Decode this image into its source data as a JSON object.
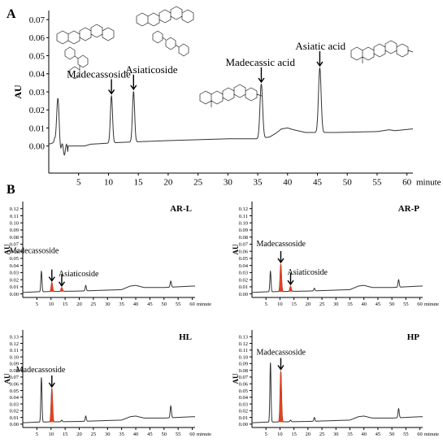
{
  "panel_labels": {
    "a": "A",
    "b": "B"
  },
  "arrow_glyph": "↓",
  "chart_data": [
    {
      "id": "A",
      "type": "line",
      "ylabel": "AU",
      "xlabel": "minute",
      "xlim": [
        0,
        61
      ],
      "ylim": [
        -0.015,
        0.075
      ],
      "xticks": [
        5,
        10,
        15,
        20,
        25,
        30,
        35,
        40,
        45,
        50,
        55,
        60
      ],
      "yticks": [
        0.0,
        0.01,
        0.02,
        0.03,
        0.04,
        0.05,
        0.06,
        0.07
      ],
      "ytick_labels": [
        "0.00",
        "0.01",
        "0.02",
        "0.03",
        "0.04",
        "0.05",
        "0.06",
        "0.07"
      ],
      "baseline": [
        [
          0,
          0.001
        ],
        [
          1,
          0.002
        ],
        [
          2,
          0.0
        ],
        [
          3,
          0.0
        ],
        [
          6,
          0.0
        ],
        [
          7,
          0.001
        ],
        [
          12,
          0.002
        ],
        [
          20,
          0.003
        ],
        [
          30,
          0.004
        ],
        [
          35,
          0.004
        ],
        [
          37,
          0.005
        ],
        [
          38,
          0.007
        ],
        [
          39,
          0.0095
        ],
        [
          40,
          0.01
        ],
        [
          41,
          0.009
        ],
        [
          43,
          0.0075
        ],
        [
          48,
          0.0075
        ],
        [
          55,
          0.008
        ],
        [
          57,
          0.009
        ],
        [
          58,
          0.0085
        ],
        [
          61,
          0.0095
        ]
      ],
      "peaks": [
        {
          "x": 1.5,
          "y": 0.026,
          "w": 0.25
        },
        {
          "x": 10.5,
          "y": 0.028,
          "w": 0.18
        },
        {
          "x": 14.2,
          "y": 0.0305,
          "w": 0.18
        },
        {
          "x": 35.6,
          "y": 0.0345,
          "w": 0.22
        },
        {
          "x": 45.4,
          "y": 0.0435,
          "w": 0.22
        }
      ],
      "annotations": [
        {
          "text": "Madecassoside",
          "x": 10.5,
          "y": 0.028
        },
        {
          "text": "Asiaticoside",
          "x": 14.2,
          "y": 0.0305
        },
        {
          "text": "Madecassic acid",
          "x": 35.6,
          "y": 0.0345
        },
        {
          "text": "Asiatic acid",
          "x": 45.4,
          "y": 0.0435
        }
      ]
    },
    {
      "id": "AR-L",
      "title": "AR-L",
      "type": "line",
      "ylabel": "AU",
      "xlabel": "minute",
      "xlim": [
        0,
        61
      ],
      "ylim": [
        -0.005,
        0.13
      ],
      "xticks": [
        5,
        10,
        15,
        20,
        25,
        30,
        35,
        40,
        45,
        50,
        55,
        60
      ],
      "yticks": [
        0.0,
        0.01,
        0.02,
        0.03,
        0.04,
        0.05,
        0.06,
        0.07,
        0.08,
        0.09,
        0.1,
        0.11,
        0.12
      ],
      "ytick_labels": [
        "0.00",
        "0.01",
        "0.02",
        "0.03",
        "0.04",
        "0.05",
        "0.06",
        "0.07",
        "0.08",
        "0.09",
        "0.10",
        "0.11",
        "0.12"
      ],
      "baseline": [
        [
          0,
          0.002
        ],
        [
          5,
          0.003
        ],
        [
          20,
          0.004
        ],
        [
          35,
          0.006
        ],
        [
          38,
          0.011
        ],
        [
          40,
          0.012
        ],
        [
          43,
          0.009
        ],
        [
          50,
          0.009
        ],
        [
          60,
          0.011
        ]
      ],
      "peaks": [
        {
          "x": 6.6,
          "y": 0.032,
          "w": 0.2,
          "highlight": false
        },
        {
          "x": 10.3,
          "y": 0.016,
          "w": 0.25,
          "highlight": true
        },
        {
          "x": 13.8,
          "y": 0.009,
          "w": 0.25,
          "highlight": true
        },
        {
          "x": 22.3,
          "y": 0.012,
          "w": 0.2,
          "highlight": false
        },
        {
          "x": 52.4,
          "y": 0.018,
          "w": 0.22,
          "highlight": false
        }
      ],
      "annotations": [
        {
          "text": "Madecassoside",
          "x": 10.3,
          "y": 0.016
        },
        {
          "text": "Asiaticoside",
          "x": 13.8,
          "y": 0.009
        }
      ]
    },
    {
      "id": "AR-P",
      "title": "AR-P",
      "type": "line",
      "ylabel": "AU",
      "xlabel": "minute",
      "xlim": [
        0,
        61
      ],
      "ylim": [
        -0.005,
        0.13
      ],
      "xticks": [
        5,
        10,
        15,
        20,
        25,
        30,
        35,
        40,
        45,
        50,
        55,
        60
      ],
      "yticks": [
        0.0,
        0.01,
        0.02,
        0.03,
        0.04,
        0.05,
        0.06,
        0.07,
        0.08,
        0.09,
        0.1,
        0.11,
        0.12
      ],
      "ytick_labels": [
        "0.00",
        "0.01",
        "0.02",
        "0.03",
        "0.04",
        "0.05",
        "0.06",
        "0.07",
        "0.08",
        "0.09",
        "0.10",
        "0.11",
        "0.12"
      ],
      "baseline": [
        [
          0,
          0.002
        ],
        [
          5,
          0.003
        ],
        [
          20,
          0.004
        ],
        [
          35,
          0.006
        ],
        [
          38,
          0.011
        ],
        [
          40,
          0.012
        ],
        [
          43,
          0.009
        ],
        [
          50,
          0.009
        ],
        [
          60,
          0.011
        ]
      ],
      "peaks": [
        {
          "x": 6.6,
          "y": 0.032,
          "w": 0.2,
          "highlight": false
        },
        {
          "x": 10.3,
          "y": 0.042,
          "w": 0.25,
          "highlight": true
        },
        {
          "x": 13.8,
          "y": 0.011,
          "w": 0.25,
          "highlight": true
        },
        {
          "x": 22.3,
          "y": 0.008,
          "w": 0.2,
          "highlight": false
        },
        {
          "x": 52.4,
          "y": 0.02,
          "w": 0.22,
          "highlight": false
        }
      ],
      "annotations": [
        {
          "text": "Madecassoside",
          "x": 10.3,
          "y": 0.042
        },
        {
          "text": "Asiaticoside",
          "x": 13.8,
          "y": 0.011
        }
      ]
    },
    {
      "id": "HL",
      "title": "HL",
      "type": "line",
      "ylabel": "AU",
      "xlabel": "minute",
      "xlim": [
        0,
        61
      ],
      "ylim": [
        -0.005,
        0.14
      ],
      "xticks": [
        5,
        10,
        15,
        20,
        25,
        30,
        35,
        40,
        45,
        50,
        55,
        60
      ],
      "yticks": [
        0.0,
        0.01,
        0.02,
        0.03,
        0.04,
        0.05,
        0.06,
        0.07,
        0.08,
        0.09,
        0.1,
        0.11,
        0.12,
        0.13
      ],
      "ytick_labels": [
        "0.00",
        "0.01",
        "0.02",
        "0.03",
        "0.04",
        "0.05",
        "0.06",
        "0.07",
        "0.08",
        "0.09",
        "0.10",
        "0.11",
        "0.12",
        "0.13"
      ],
      "baseline": [
        [
          0,
          0.002
        ],
        [
          5,
          0.003
        ],
        [
          20,
          0.004
        ],
        [
          35,
          0.006
        ],
        [
          38,
          0.011
        ],
        [
          40,
          0.012
        ],
        [
          43,
          0.009
        ],
        [
          50,
          0.009
        ],
        [
          60,
          0.011
        ]
      ],
      "peaks": [
        {
          "x": 6.6,
          "y": 0.07,
          "w": 0.2,
          "highlight": false
        },
        {
          "x": 10.3,
          "y": 0.053,
          "w": 0.25,
          "highlight": true
        },
        {
          "x": 13.8,
          "y": 0.006,
          "w": 0.2,
          "highlight": false
        },
        {
          "x": 22.3,
          "y": 0.012,
          "w": 0.2,
          "highlight": false
        },
        {
          "x": 52.4,
          "y": 0.027,
          "w": 0.22,
          "highlight": false
        }
      ],
      "annotations": [
        {
          "text": "Madecassoside",
          "x": 10.3,
          "y": 0.053
        }
      ]
    },
    {
      "id": "HP",
      "title": "HP",
      "type": "line",
      "ylabel": "AU",
      "xlabel": "minute",
      "xlim": [
        0,
        61
      ],
      "ylim": [
        -0.005,
        0.14
      ],
      "xticks": [
        5,
        10,
        15,
        20,
        25,
        30,
        35,
        40,
        45,
        50,
        55,
        60
      ],
      "yticks": [
        0.0,
        0.01,
        0.02,
        0.03,
        0.04,
        0.05,
        0.06,
        0.07,
        0.08,
        0.09,
        0.1,
        0.11,
        0.12,
        0.13
      ],
      "ytick_labels": [
        "0.00",
        "0.01",
        "0.02",
        "0.03",
        "0.04",
        "0.05",
        "0.06",
        "0.07",
        "0.08",
        "0.09",
        "0.10",
        "0.11",
        "0.12",
        "0.13"
      ],
      "baseline": [
        [
          0,
          0.002
        ],
        [
          5,
          0.003
        ],
        [
          20,
          0.004
        ],
        [
          35,
          0.006
        ],
        [
          38,
          0.011
        ],
        [
          40,
          0.012
        ],
        [
          43,
          0.009
        ],
        [
          50,
          0.009
        ],
        [
          60,
          0.011
        ]
      ],
      "peaks": [
        {
          "x": 6.6,
          "y": 0.092,
          "w": 0.2,
          "highlight": false
        },
        {
          "x": 10.3,
          "y": 0.079,
          "w": 0.25,
          "highlight": true
        },
        {
          "x": 13.8,
          "y": 0.006,
          "w": 0.2,
          "highlight": false
        },
        {
          "x": 22.3,
          "y": 0.01,
          "w": 0.2,
          "highlight": false
        },
        {
          "x": 52.4,
          "y": 0.023,
          "w": 0.22,
          "highlight": false
        }
      ],
      "annotations": [
        {
          "text": "Madecassoside",
          "x": 10.3,
          "y": 0.079
        }
      ]
    }
  ],
  "colors": {
    "trace": "#333333",
    "highlight": "#e8401c",
    "axis": "#000000"
  }
}
